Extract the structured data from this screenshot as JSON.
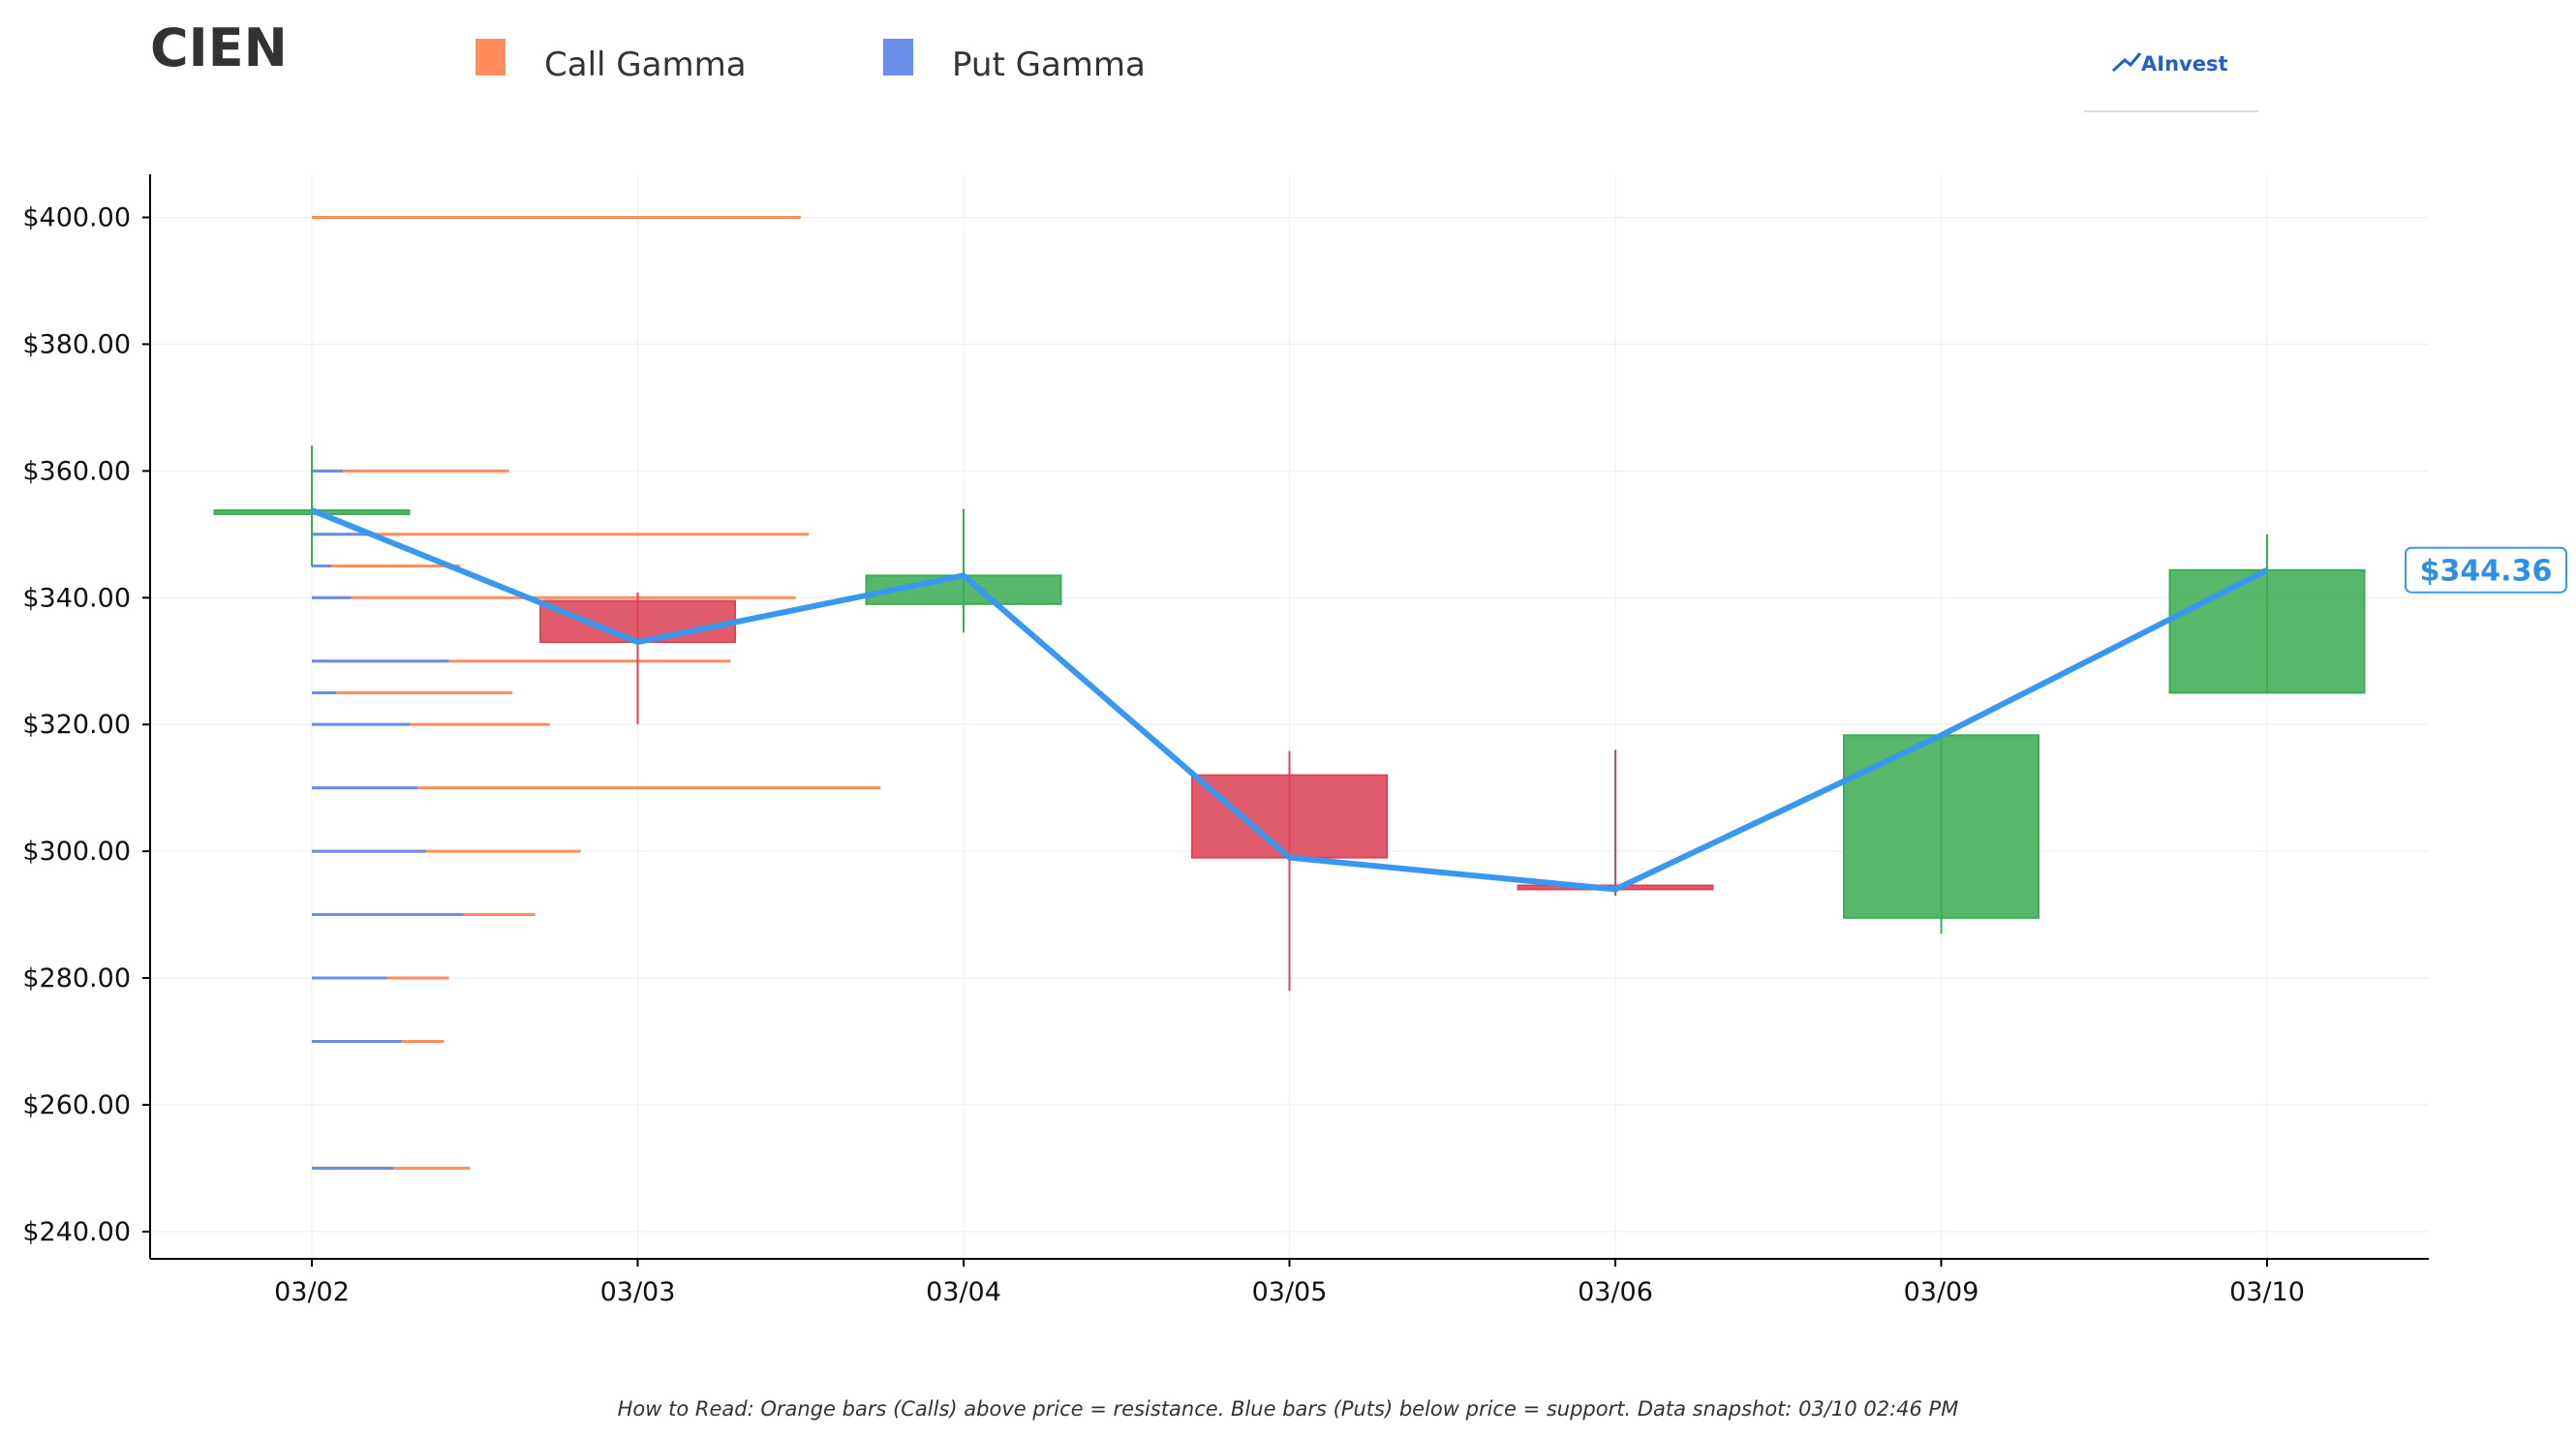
{
  "ticker": "CIEN",
  "legend": [
    {
      "label": "Call Gamma",
      "color": "#ff8c5a"
    },
    {
      "label": "Put Gamma",
      "color": "#6a8ee8"
    }
  ],
  "brand": {
    "name": "AInvest"
  },
  "footnote": "How to Read: Orange bars (Calls) above price = resistance. Blue bars (Puts) below price = support. Data snapshot: 03/10 02:46 PM",
  "last_price_label": "$344.36",
  "chart_data": {
    "type": "candlestick",
    "categories": [
      "03/02",
      "03/03",
      "03/04",
      "03/05",
      "03/06",
      "03/09",
      "03/10"
    ],
    "y_ticks": [
      "$240.00",
      "$260.00",
      "$280.00",
      "$300.00",
      "$320.00",
      "$340.00",
      "$360.00",
      "$380.00",
      "$400.00"
    ],
    "ylim": [
      235.7,
      406.8
    ],
    "grid": true,
    "colors": {
      "up": "#3fac55",
      "down": "#dc4558",
      "close_line": "#3897ee",
      "call": "#ff8c5a",
      "put": "#6a8ee8",
      "grid": "#eeeeee"
    },
    "candles": [
      {
        "date": "03/02",
        "open": 353.8,
        "high": 364.0,
        "low": 345.0,
        "close": 353.8
      },
      {
        "date": "03/03",
        "open": 339.5,
        "high": 340.8,
        "low": 320.0,
        "close": 333.0
      },
      {
        "date": "03/04",
        "open": 339.0,
        "high": 354.0,
        "low": 334.5,
        "close": 343.5
      },
      {
        "date": "03/05",
        "open": 312.0,
        "high": 315.8,
        "low": 278.0,
        "close": 299.0
      },
      {
        "date": "03/06",
        "open": 294.6,
        "high": 316.0,
        "low": 293.0,
        "close": 294.0
      },
      {
        "date": "03/09",
        "open": 289.5,
        "high": 318.5,
        "low": 287.0,
        "close": 318.3
      },
      {
        "date": "03/10",
        "open": 325.0,
        "high": 350.0,
        "low": 325.0,
        "close": 344.36
      }
    ],
    "gamma_levels": [
      {
        "strike": 400,
        "call": 3.0,
        "put": 0.0
      },
      {
        "strike": 360,
        "call": 1.21,
        "put": 0.19
      },
      {
        "strike": 350,
        "call": 3.05,
        "put": 0.35
      },
      {
        "strike": 345,
        "call": 0.91,
        "put": 0.12
      },
      {
        "strike": 340,
        "call": 2.97,
        "put": 0.24
      },
      {
        "strike": 330,
        "call": 2.57,
        "put": 0.84
      },
      {
        "strike": 325,
        "call": 1.23,
        "put": 0.15
      },
      {
        "strike": 320,
        "call": 1.46,
        "put": 0.6
      },
      {
        "strike": 310,
        "call": 3.49,
        "put": 0.65
      },
      {
        "strike": 300,
        "call": 1.65,
        "put": 0.7
      },
      {
        "strike": 290,
        "call": 1.37,
        "put": 0.93
      },
      {
        "strike": 280,
        "call": 0.84,
        "put": 0.46
      },
      {
        "strike": 270,
        "call": 0.81,
        "put": 0.55
      },
      {
        "strike": 250,
        "call": 0.97,
        "put": 0.5
      }
    ]
  }
}
